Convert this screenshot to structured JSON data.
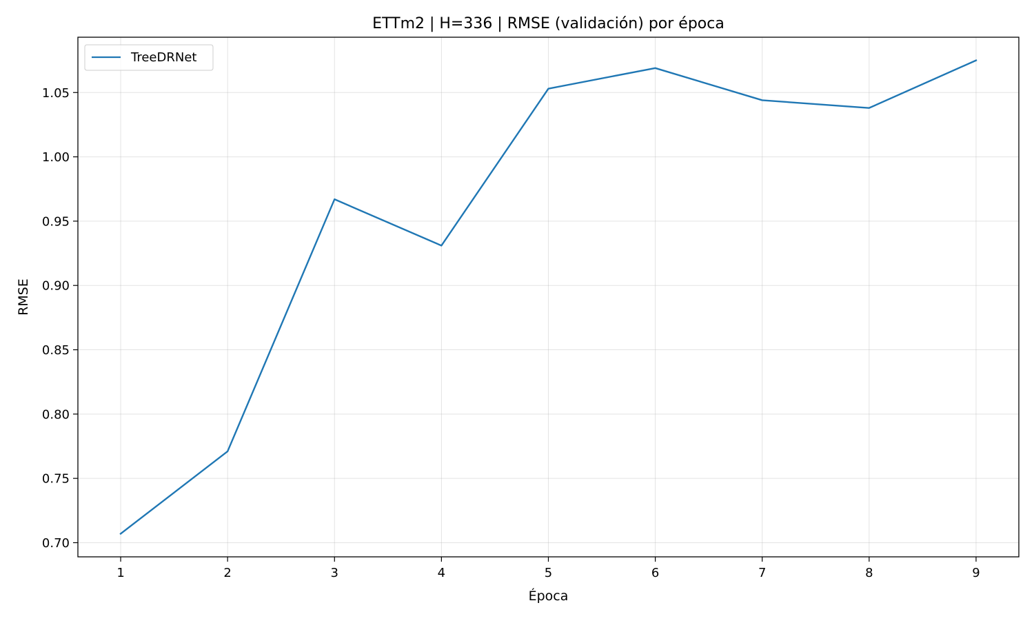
{
  "chart_data": {
    "type": "line",
    "title": "ETTm2 | H=336 | RMSE (validación) por época",
    "xlabel": "Época",
    "ylabel": "RMSE",
    "x": [
      1,
      2,
      3,
      4,
      5,
      6,
      7,
      8,
      9
    ],
    "series": [
      {
        "name": "TreeDRNet",
        "color": "#1f77b4",
        "values": [
          0.707,
          0.771,
          0.967,
          0.931,
          1.053,
          1.069,
          1.044,
          1.038,
          1.075
        ]
      }
    ],
    "xlim": [
      0.6,
      9.4
    ],
    "ylim": [
      0.689,
      1.093
    ],
    "xticks": [
      1,
      2,
      3,
      4,
      5,
      6,
      7,
      8,
      9
    ],
    "yticks": [
      0.7,
      0.75,
      0.8,
      0.85,
      0.9,
      0.95,
      1.0,
      1.05
    ],
    "ytick_labels": [
      "0.70",
      "0.75",
      "0.80",
      "0.85",
      "0.90",
      "0.95",
      "1.00",
      "1.05"
    ],
    "grid": true,
    "legend_position": "top-left"
  }
}
